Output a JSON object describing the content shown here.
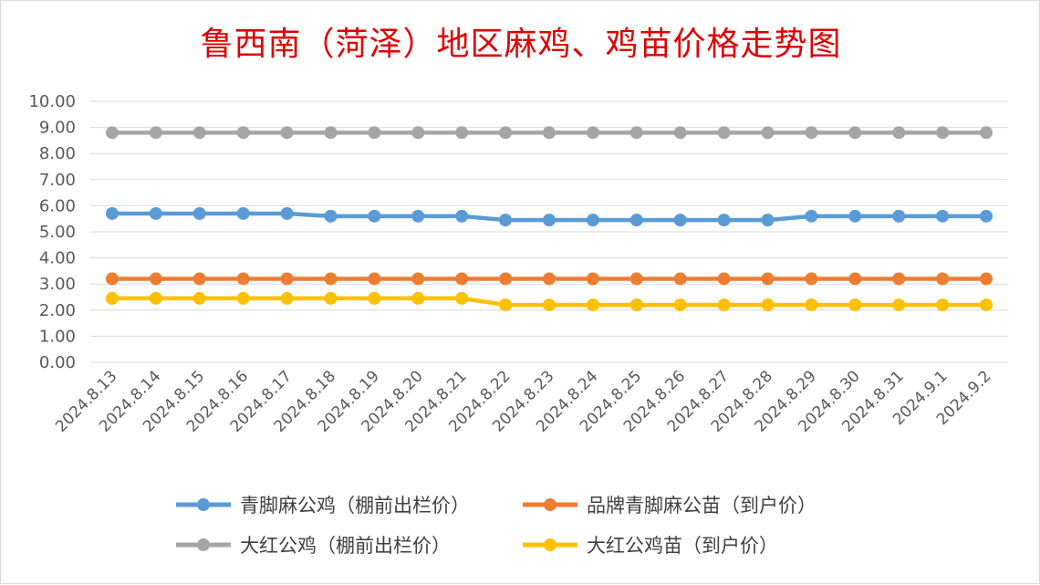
{
  "chart_data": {
    "type": "line",
    "title": "鲁西南（菏泽）地区麻鸡、鸡苗价格走势图",
    "categories": [
      "2024.8.13",
      "2024.8.14",
      "2024.8.15",
      "2024.8.16",
      "2024.8.17",
      "2024.8.18",
      "2024.8.19",
      "2024.8.20",
      "2024.8.21",
      "2024.8.22",
      "2024.8.23",
      "2024.8.24",
      "2024.8.25",
      "2024.8.26",
      "2024.8.27",
      "2024.8.28",
      "2024.8.29",
      "2024.8.30",
      "2024.8.31",
      "2024.9.1",
      "2024.9.2"
    ],
    "y_ticks": [
      "0.00",
      "1.00",
      "2.00",
      "3.00",
      "4.00",
      "5.00",
      "6.00",
      "7.00",
      "8.00",
      "9.00",
      "10.00"
    ],
    "ylim": [
      0,
      10
    ],
    "grid": true,
    "legend_position": "bottom",
    "series": [
      {
        "name": "青脚麻公鸡（棚前出栏价）",
        "color": "#5b9bd5",
        "values": [
          5.7,
          5.7,
          5.7,
          5.7,
          5.7,
          5.6,
          5.6,
          5.6,
          5.6,
          5.45,
          5.45,
          5.45,
          5.45,
          5.45,
          5.45,
          5.45,
          5.6,
          5.6,
          5.6,
          5.6,
          5.6
        ]
      },
      {
        "name": "品牌青脚麻公苗（到户价）",
        "color": "#ed7d31",
        "values": [
          3.2,
          3.2,
          3.2,
          3.2,
          3.2,
          3.2,
          3.2,
          3.2,
          3.2,
          3.2,
          3.2,
          3.2,
          3.2,
          3.2,
          3.2,
          3.2,
          3.2,
          3.2,
          3.2,
          3.2,
          3.2
        ]
      },
      {
        "name": "大红公鸡（棚前出栏价）",
        "color": "#a5a5a5",
        "values": [
          8.8,
          8.8,
          8.8,
          8.8,
          8.8,
          8.8,
          8.8,
          8.8,
          8.8,
          8.8,
          8.8,
          8.8,
          8.8,
          8.8,
          8.8,
          8.8,
          8.8,
          8.8,
          8.8,
          8.8,
          8.8
        ]
      },
      {
        "name": "大红公鸡苗（到户价）",
        "color": "#ffc000",
        "values": [
          2.45,
          2.45,
          2.45,
          2.45,
          2.45,
          2.45,
          2.45,
          2.45,
          2.45,
          2.2,
          2.2,
          2.2,
          2.2,
          2.2,
          2.2,
          2.2,
          2.2,
          2.2,
          2.2,
          2.2,
          2.2
        ]
      }
    ]
  }
}
